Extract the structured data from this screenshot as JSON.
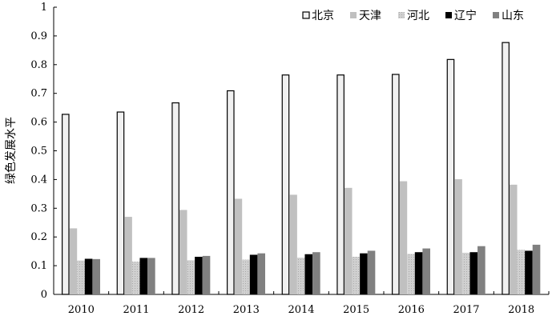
{
  "chart_data": {
    "type": "bar",
    "title": "",
    "xlabel": "",
    "ylabel": "绿色发展水平",
    "ylim": [
      0,
      1
    ],
    "yticks": [
      "0",
      "0.1",
      "0.2",
      "0.3",
      "0.4",
      "0.5",
      "0.6",
      "0.7",
      "0.8",
      "0.9",
      "1"
    ],
    "grid": false,
    "legend_position": "top-right",
    "categories": [
      "2010",
      "2011",
      "2012",
      "2013",
      "2014",
      "2015",
      "2016",
      "2017",
      "2018"
    ],
    "series": [
      {
        "name": "北京",
        "color": "#f0f0f0",
        "stroke": "#000000",
        "values": [
          0.627,
          0.635,
          0.667,
          0.709,
          0.764,
          0.764,
          0.766,
          0.818,
          0.877
        ]
      },
      {
        "name": "天津",
        "color": "#c0c0c0",
        "values": [
          0.23,
          0.27,
          0.294,
          0.333,
          0.347,
          0.371,
          0.394,
          0.401,
          0.382
        ]
      },
      {
        "name": "河北",
        "color": "#c8c8c8",
        "pattern": "dotted",
        "values": [
          0.118,
          0.114,
          0.119,
          0.121,
          0.128,
          0.131,
          0.141,
          0.145,
          0.155
        ]
      },
      {
        "name": "辽宁",
        "color": "#000000",
        "values": [
          0.124,
          0.127,
          0.131,
          0.138,
          0.14,
          0.143,
          0.147,
          0.147,
          0.152
        ]
      },
      {
        "name": "山东",
        "color": "#808080",
        "values": [
          0.123,
          0.127,
          0.134,
          0.143,
          0.147,
          0.152,
          0.16,
          0.168,
          0.173
        ]
      }
    ]
  }
}
